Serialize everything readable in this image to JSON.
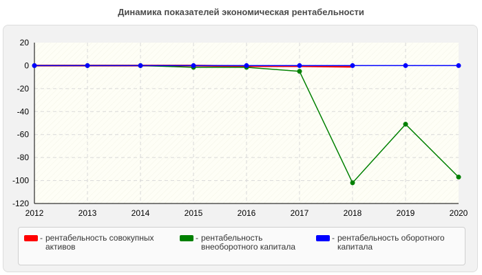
{
  "chart_data": {
    "type": "line",
    "title": "Динамика показателей экономическая рентабельности",
    "x": [
      "2012",
      "2013",
      "2014",
      "2015",
      "2016",
      "2017",
      "2018",
      "2019",
      "2020"
    ],
    "y_ticks": [
      "20",
      "0",
      "-20",
      "-40",
      "-60",
      "-80",
      "-100",
      "-120"
    ],
    "ylim": [
      -120,
      20
    ],
    "grid": true,
    "legend_position": "bottom",
    "series": [
      {
        "name": "рентабельность совокупных активов",
        "color": "#ff0000",
        "values": [
          0,
          0,
          0,
          0,
          -0.5,
          -0.5,
          -1,
          null,
          null
        ],
        "markers": false
      },
      {
        "name": "рентабельность внеоборотного капитала",
        "color": "#008000",
        "values": [
          0,
          0,
          0,
          -1.5,
          -1.5,
          -5,
          -102,
          -51,
          -97
        ],
        "markers": true
      },
      {
        "name": "рентабельность оборотного капитала",
        "color": "#0000ff",
        "values": [
          0,
          0,
          0,
          0,
          0,
          0,
          0,
          0,
          0
        ],
        "markers": true
      }
    ]
  }
}
